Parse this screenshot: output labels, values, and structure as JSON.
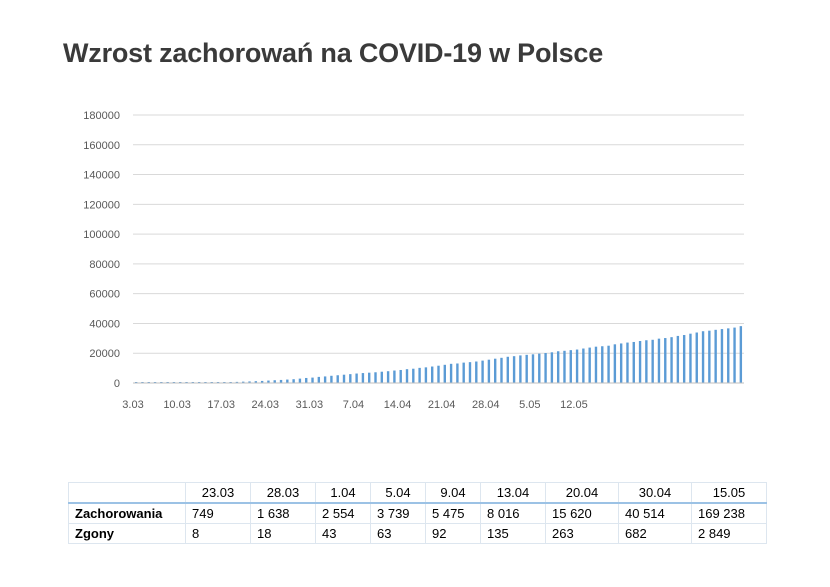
{
  "title": "Wzrost zachorowań na COVID-19 w Polsce",
  "chart_data": {
    "type": "bar",
    "title": "Wzrost zachorowań na COVID-19 w Polsce",
    "xlabel": "",
    "ylabel": "",
    "ylim": [
      0,
      180000
    ],
    "yticks": [
      "0",
      "20000",
      "40000",
      "60000",
      "80000",
      "100000",
      "120000",
      "140000",
      "160000",
      "180000"
    ],
    "xticks": [
      "3.03",
      "10.03",
      "17.03",
      "24.03",
      "31.03",
      "7.04",
      "14.04",
      "21.04",
      "28.04",
      "5.05",
      "12.05"
    ],
    "grid": true,
    "legend": "none",
    "bar_color": "#5b9bd5",
    "series": [
      {
        "values": [
          1,
          5,
          17,
          25,
          31,
          47,
          68,
          103,
          150,
          177,
          251,
          287,
          355,
          425,
          536,
          634,
          749,
          901,
          1051,
          1221,
          1389,
          1638,
          1862,
          2055,
          2311,
          2554,
          2946,
          3383,
          3627,
          4102,
          4413,
          4848,
          5205,
          5575,
          5955,
          6356,
          6674,
          6934,
          7202,
          7582,
          7918,
          8379,
          8742,
          9287,
          9593,
          10169,
          10511,
          11067,
          11617,
          12218,
          12877,
          13105,
          13693,
          14006,
          14431,
          15047,
          15651,
          16326,
          16921,
          17615,
          18016,
          18529,
          18911,
          19268,
          19739,
          20143,
          20619,
          21326,
          21631,
          22074,
          22473,
          23155,
          23786,
          24395,
          24687,
          25048,
          25986,
          26561,
          27160,
          27560,
          28201,
          28711,
          29017,
          29788,
          30195,
          30787,
          31620,
          32227,
          33119,
          33907,
          34775,
          35146,
          35719,
          36216,
          36689,
          37216,
          38190
        ]
      }
    ]
  },
  "table": {
    "headers": [
      "",
      "23.03",
      "28.03",
      "1.04",
      "5.04",
      "9.04",
      "13.04",
      "20.04",
      "30.04",
      "15.05"
    ],
    "rows": [
      {
        "label": "Zachorowania",
        "values": [
          "749",
          "1 638",
          "2 554",
          "3 739",
          "5 475",
          "8 016",
          "15 620",
          "40 514",
          "169 238"
        ]
      },
      {
        "label": "Zgony",
        "values": [
          "8",
          "18",
          "43",
          "63",
          "92",
          "135",
          "263",
          "682",
          "2 849"
        ]
      }
    ]
  }
}
